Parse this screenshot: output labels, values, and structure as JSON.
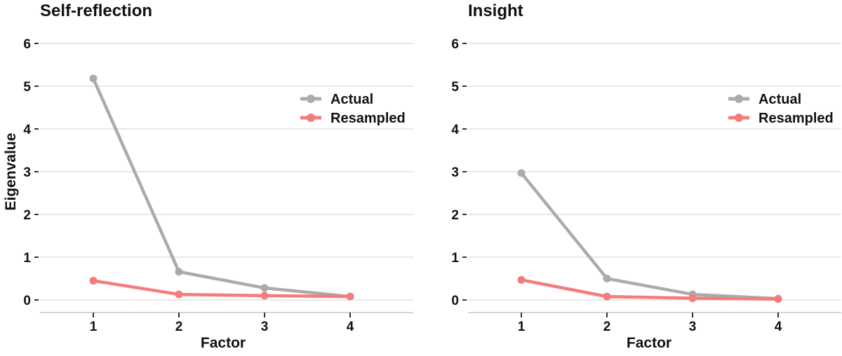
{
  "chart_data": [
    {
      "type": "line",
      "title": "Self-reflection",
      "xlabel": "Factor",
      "ylabel": "Eigenvalue",
      "categories": [
        "1",
        "2",
        "3",
        "4"
      ],
      "yticks": [
        "0",
        "1",
        "2",
        "3",
        "4",
        "5",
        "6"
      ],
      "ylim": [
        0,
        6
      ],
      "grid": "horizontal",
      "legend_position": "inside-top-right",
      "series": [
        {
          "name": "Actual",
          "color": "#ababab",
          "values": [
            5.18,
            0.66,
            0.28,
            0.08
          ]
        },
        {
          "name": "Resampled",
          "color": "#f47c7c",
          "values": [
            0.45,
            0.13,
            0.1,
            0.08
          ]
        }
      ]
    },
    {
      "type": "line",
      "title": "Insight",
      "xlabel": "Factor",
      "ylabel": "",
      "categories": [
        "1",
        "2",
        "3",
        "4"
      ],
      "yticks": [
        "0",
        "1",
        "2",
        "3",
        "4",
        "5",
        "6"
      ],
      "ylim": [
        0,
        6
      ],
      "grid": "horizontal",
      "legend_position": "inside-top-right",
      "series": [
        {
          "name": "Actual",
          "color": "#ababab",
          "values": [
            2.97,
            0.5,
            0.13,
            0.03
          ]
        },
        {
          "name": "Resampled",
          "color": "#f47c7c",
          "values": [
            0.47,
            0.08,
            0.04,
            0.02
          ]
        }
      ]
    }
  ],
  "colors": {
    "actual": "#ababab",
    "resampled": "#f47c7c",
    "gridline": "#dbdbdb",
    "axis_line": "#c9c9c9",
    "tick_mark": "#333333",
    "text": "#111111"
  }
}
